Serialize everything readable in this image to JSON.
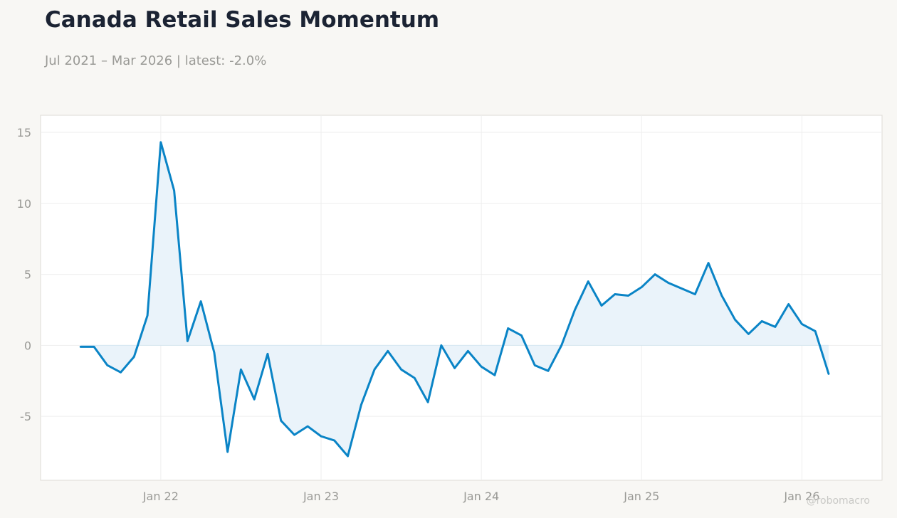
{
  "header": {
    "title": "Canada Retail Sales Momentum",
    "subtitle": "Jul 2021 – Mar 2026 | latest: -2.0%"
  },
  "watermark": "@robomacro",
  "colors": {
    "line": "#0a84c6",
    "fill": "#eaf3fa",
    "background": "#f8f7f4",
    "plot_background": "#ffffff",
    "grid": "#eeeeee",
    "zero_line": "#d6e6f0"
  },
  "chart_data": {
    "type": "area",
    "title": "Canada Retail Sales Momentum",
    "subtitle": "Jul 2021 – Mar 2026 | latest: -2.0%",
    "xlabel": "",
    "ylabel": "",
    "x_range": [
      "2021-04",
      "2026-07"
    ],
    "ylim": [
      -9.5,
      16.2
    ],
    "grid": true,
    "legend": "none",
    "y_ticks": [
      -5,
      0,
      5,
      10,
      15
    ],
    "y_tick_labels": [
      "-5",
      "0",
      "5",
      "10",
      "15"
    ],
    "x_ticks": [
      "2022-01",
      "2023-01",
      "2024-01",
      "2025-01",
      "2026-01"
    ],
    "x_tick_labels": [
      "Jan 22",
      "Jan 23",
      "Jan 24",
      "Jan 25",
      "Jan 26"
    ],
    "series": [
      {
        "x": [
          "2021-07",
          "2021-08",
          "2021-09",
          "2021-10",
          "2021-11",
          "2021-12",
          "2022-01",
          "2022-02",
          "2022-03",
          "2022-04",
          "2022-05",
          "2022-06",
          "2022-07",
          "2022-08",
          "2022-09",
          "2022-10",
          "2022-11",
          "2022-12",
          "2023-01",
          "2023-02",
          "2023-03",
          "2023-04",
          "2023-05",
          "2023-06",
          "2023-07",
          "2023-08",
          "2023-09",
          "2023-10",
          "2023-11",
          "2023-12",
          "2024-01",
          "2024-02",
          "2024-03",
          "2024-04",
          "2024-05",
          "2024-06",
          "2024-07",
          "2024-08",
          "2024-09",
          "2024-10",
          "2024-11",
          "2024-12",
          "2025-01",
          "2025-02",
          "2025-03",
          "2025-04",
          "2025-05",
          "2025-06",
          "2025-07",
          "2025-08",
          "2025-09",
          "2025-10",
          "2025-11",
          "2025-12",
          "2026-01",
          "2026-02",
          "2026-03"
        ],
        "values": [
          -0.1,
          -0.1,
          -1.4,
          -1.9,
          -0.8,
          2.1,
          14.3,
          10.9,
          0.3,
          3.1,
          -0.5,
          -7.5,
          -1.7,
          -3.8,
          -0.6,
          -5.3,
          -6.3,
          -5.7,
          -6.4,
          -6.7,
          -7.8,
          -4.2,
          -1.7,
          -0.4,
          -1.7,
          -2.3,
          -4.0,
          0.0,
          -1.6,
          -0.4,
          -1.5,
          -2.1,
          1.2,
          0.7,
          -1.4,
          -1.8,
          0.0,
          2.5,
          4.5,
          2.8,
          3.6,
          3.5,
          4.1,
          5.0,
          4.4,
          4.0,
          3.6,
          5.8,
          3.5,
          1.8,
          0.8,
          1.7,
          1.3,
          2.9,
          1.5,
          1.0,
          -2.0
        ]
      }
    ]
  }
}
